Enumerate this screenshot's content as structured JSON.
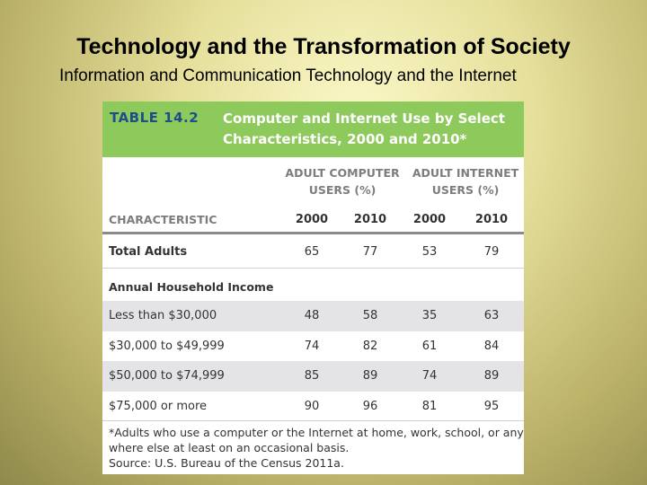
{
  "slide": {
    "title": "Technology and the Transformation of Society",
    "subtitle": "Information and Communication Technology and the Internet"
  },
  "table": {
    "number": "TABLE 14.2",
    "title_line1": "Computer and Internet Use by Select",
    "title_line2": "Characteristics, 2000 and 2010*",
    "group_computer_line1": "ADULT COMPUTER",
    "group_computer_line2": "USERS (%)",
    "group_internet_line1": "ADULT INTERNET",
    "group_internet_line2": "USERS (%)",
    "columns": [
      "CHARACTERISTIC",
      "2000",
      "2010",
      "2000",
      "2010"
    ],
    "total_row": {
      "label": "Total Adults",
      "values": [
        "65",
        "77",
        "53",
        "79"
      ]
    },
    "section_label": "Annual Household Income",
    "rows": [
      {
        "label": "Less than $30,000",
        "values": [
          "48",
          "58",
          "35",
          "63"
        ]
      },
      {
        "label": "$30,000 to $49,999",
        "values": [
          "74",
          "82",
          "61",
          "84"
        ]
      },
      {
        "label": "$50,000 to $74,999",
        "values": [
          "85",
          "89",
          "74",
          "89"
        ]
      },
      {
        "label": "$75,000 or more",
        "values": [
          "90",
          "96",
          "81",
          "95"
        ]
      }
    ],
    "footnote_line1": "*Adults who use a computer or the Internet at home, work, school, or any-",
    "footnote_line2": "where else at least on an occasional basis.",
    "source": "Source: U.S. Bureau of the Census 2011a."
  }
}
